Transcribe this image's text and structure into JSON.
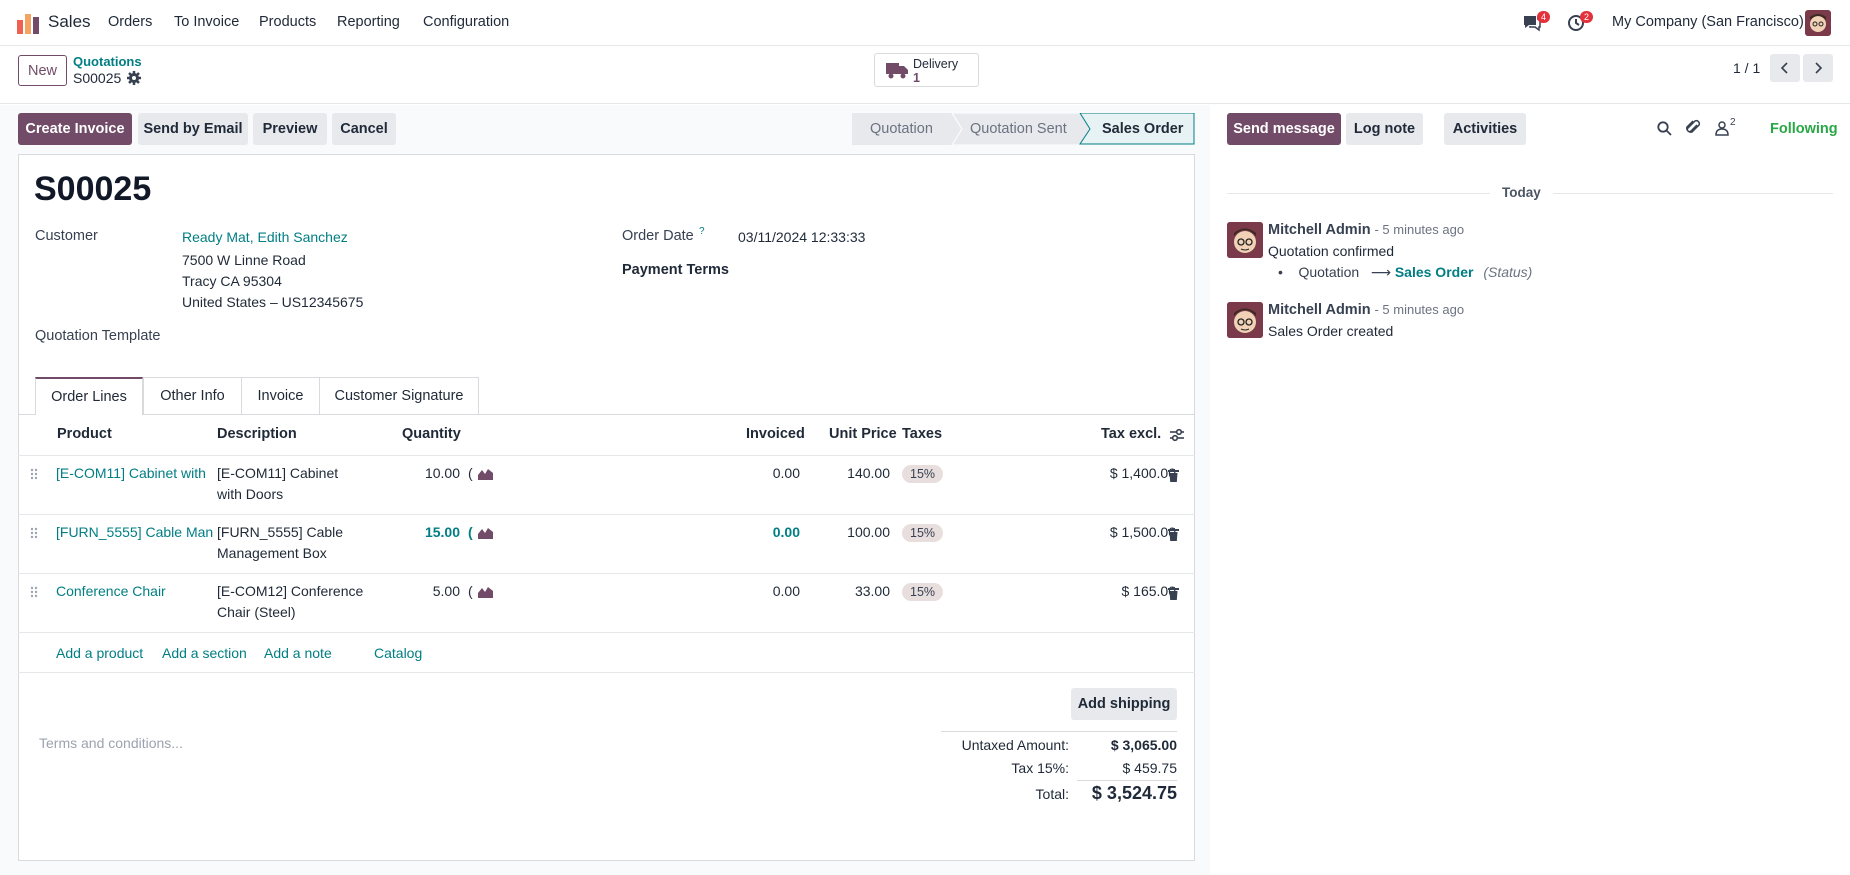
{
  "topbar": {
    "app_name": "Sales",
    "menu": [
      "Orders",
      "To Invoice",
      "Products",
      "Reporting",
      "Configuration"
    ],
    "chat_count": "4",
    "activity_count": "2",
    "company": "My Company (San Francisco)"
  },
  "control": {
    "new_label": "New",
    "breadcrumb_parent": "Quotations",
    "record_name": "S00025",
    "delivery_label": "Delivery",
    "delivery_count": "1",
    "pager": "1 / 1"
  },
  "actions": {
    "create_invoice": "Create Invoice",
    "send_email": "Send by Email",
    "preview": "Preview",
    "cancel": "Cancel"
  },
  "statusbar": {
    "stages": [
      "Quotation",
      "Quotation Sent",
      "Sales Order"
    ],
    "active": "Sales Order"
  },
  "form": {
    "title": "S00025",
    "customer_label": "Customer",
    "customer_name": "Ready Mat, Edith Sanchez",
    "address_line1": "7500 W Linne Road",
    "address_line2": "Tracy CA 95304",
    "address_line3": "United States – US12345675",
    "order_date_label": "Order Date",
    "order_date_help": "?",
    "order_date": "03/11/2024 12:33:33",
    "payment_terms_label": "Payment Terms",
    "template_label": "Quotation Template"
  },
  "tabs": [
    "Order Lines",
    "Other Info",
    "Invoice",
    "Customer Signature"
  ],
  "lines": {
    "headers": {
      "product": "Product",
      "description": "Description",
      "quantity": "Quantity",
      "invoiced": "Invoiced",
      "unit_price": "Unit Price",
      "taxes": "Taxes",
      "tax_excl": "Tax excl."
    },
    "rows": [
      {
        "product": "[E-COM11] Cabinet with",
        "desc1": "[E-COM11] Cabinet",
        "desc2": "with Doors",
        "qty": "10.00",
        "invoiced": "0.00",
        "price": "140.00",
        "tax": "15%",
        "subtotal": "$ 1,400.00"
      },
      {
        "product": "[FURN_5555] Cable Man",
        "desc1": "[FURN_5555] Cable",
        "desc2": "Management Box",
        "qty": "15.00",
        "invoiced": "0.00",
        "price": "100.00",
        "tax": "15%",
        "subtotal": "$ 1,500.00"
      },
      {
        "product": "Conference Chair",
        "desc1": "[E-COM12] Conference",
        "desc2": "Chair (Steel)",
        "qty": "5.00",
        "invoiced": "0.00",
        "price": "33.00",
        "tax": "15%",
        "subtotal": "$ 165.00"
      }
    ],
    "add_product": "Add a product",
    "add_section": "Add a section",
    "add_note": "Add a note",
    "catalog": "Catalog"
  },
  "footer": {
    "add_shipping": "Add shipping",
    "terms_placeholder": "Terms and conditions...",
    "untaxed_label": "Untaxed Amount:",
    "untaxed_value": "$ 3,065.00",
    "tax_label": "Tax 15%:",
    "tax_value": "$ 459.75",
    "total_label": "Total:",
    "total_value": "$ 3,524.75"
  },
  "chatter": {
    "send_message": "Send message",
    "log_note": "Log note",
    "activities": "Activities",
    "followers_count": "2",
    "following": "Following",
    "date_separator": "Today",
    "messages": [
      {
        "author": "Mitchell Admin",
        "time": "- 5 minutes ago",
        "body": "Quotation confirmed",
        "change_from": "Quotation",
        "change_to": "Sales Order",
        "change_field": "(Status)"
      },
      {
        "author": "Mitchell Admin",
        "time": "- 5 minutes ago",
        "body": "Sales Order created"
      }
    ]
  },
  "colors": {
    "brand": "#714b67",
    "link": "#017e84",
    "badge": "#e4323c",
    "following": "#28a745"
  }
}
